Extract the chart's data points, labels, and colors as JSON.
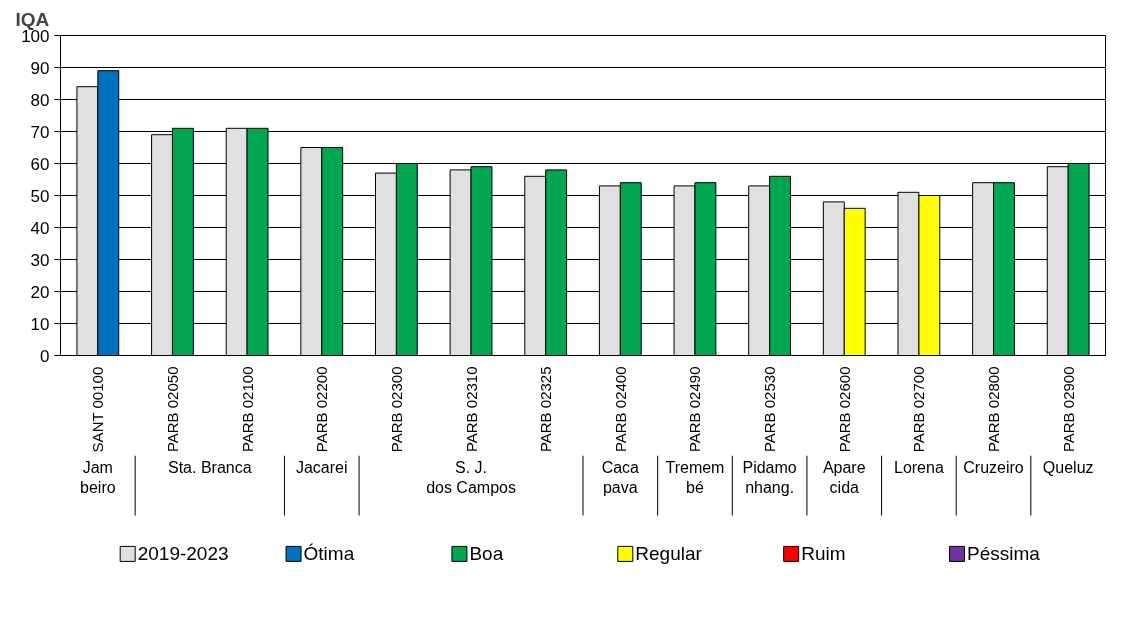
{
  "chart_data": {
    "type": "bar",
    "ylabel": "IQA",
    "categories": [
      "SANT 00100",
      "PARB 02050",
      "PARB 02100",
      "PARB 02200",
      "PARB 02300",
      "PARB 02310",
      "PARB 02325",
      "PARB 02400",
      "PARB 02490",
      "PARB 02530",
      "PARB 02600",
      "PARB 02700",
      "PARB 02800",
      "PARB 02900"
    ],
    "series": [
      {
        "name": "2019-2023",
        "color": "#e0e0e0",
        "values": [
          84,
          69,
          71,
          65,
          57,
          58,
          56,
          53,
          53,
          53,
          48,
          51,
          54,
          59
        ]
      },
      {
        "name": "Ótima",
        "color": "#0070c0",
        "values": [
          89,
          null,
          null,
          null,
          null,
          null,
          null,
          null,
          null,
          null,
          null,
          null,
          null,
          null
        ]
      },
      {
        "name": "Boa",
        "color": "#00a650",
        "values": [
          null,
          71,
          71,
          65,
          60,
          59,
          58,
          54,
          54,
          56,
          null,
          null,
          54,
          60
        ]
      },
      {
        "name": "Regular",
        "color": "#ffff00",
        "values": [
          null,
          null,
          null,
          null,
          null,
          null,
          null,
          null,
          null,
          null,
          46,
          50,
          null,
          null
        ]
      },
      {
        "name": "Ruim",
        "color": "#ff0000",
        "values": [
          null,
          null,
          null,
          null,
          null,
          null,
          null,
          null,
          null,
          null,
          null,
          null,
          null,
          null
        ]
      },
      {
        "name": "Péssima",
        "color": "#7030a0",
        "values": [
          null,
          null,
          null,
          null,
          null,
          null,
          null,
          null,
          null,
          null,
          null,
          null,
          null,
          null
        ]
      }
    ],
    "annotations": [
      "Jam\nbeiro",
      "Sta. Branca",
      "Jacarei",
      "S. J.\ndos Campos",
      "Caca\npava",
      "Tremem\nbé",
      "Pidamo\nnhang.",
      "Apare\ncida",
      "Lorena",
      "Cruzeiro",
      "Queluz"
    ],
    "ylim": [
      0,
      100
    ],
    "yticks": [
      0,
      10,
      20,
      30,
      40,
      50,
      60,
      70,
      80,
      90,
      100
    ],
    "grid": "y",
    "legend": "bottom"
  }
}
